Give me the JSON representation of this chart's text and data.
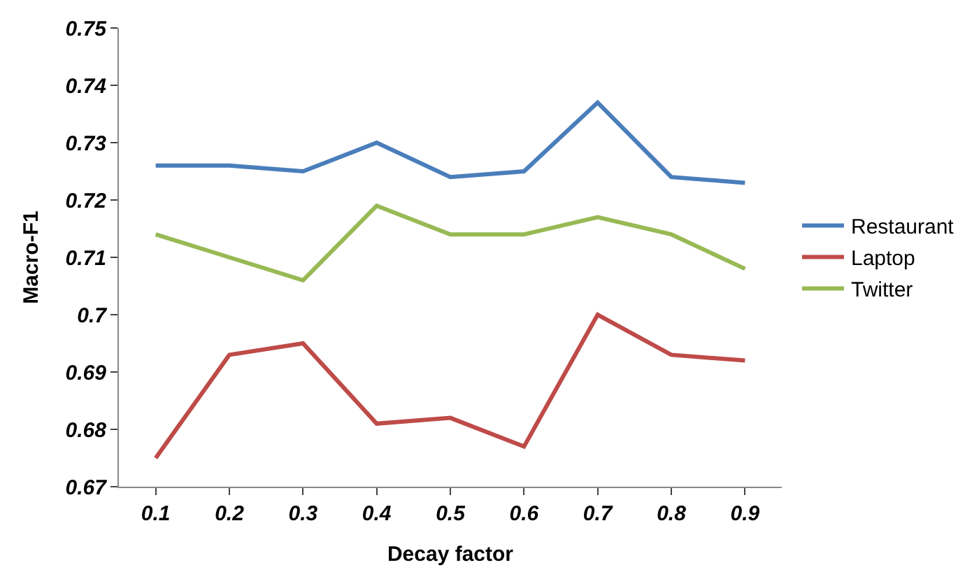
{
  "chart_data": {
    "type": "line",
    "xlabel": "Decay factor",
    "ylabel": "Macro-F1",
    "categories": [
      "0.1",
      "0.2",
      "0.3",
      "0.4",
      "0.5",
      "0.6",
      "0.7",
      "0.8",
      "0.9"
    ],
    "series": [
      {
        "name": "Restaurant",
        "color": "#4a7ebb",
        "values": [
          0.726,
          0.726,
          0.725,
          0.73,
          0.724,
          0.725,
          0.737,
          0.724,
          0.723
        ]
      },
      {
        "name": "Laptop",
        "color": "#be4b48",
        "values": [
          0.675,
          0.693,
          0.695,
          0.681,
          0.682,
          0.677,
          0.7,
          0.693,
          0.692
        ]
      },
      {
        "name": "Twitter",
        "color": "#98b954",
        "values": [
          0.714,
          0.71,
          0.706,
          0.719,
          0.714,
          0.714,
          0.717,
          0.714,
          0.708
        ]
      }
    ],
    "ylim": [
      0.67,
      0.75
    ],
    "yticks": [
      0.67,
      0.68,
      0.69,
      0.7,
      0.71,
      0.72,
      0.73,
      0.74,
      0.75
    ],
    "grid": false,
    "legend": "right",
    "marker": "none",
    "line_style": "solid"
  }
}
